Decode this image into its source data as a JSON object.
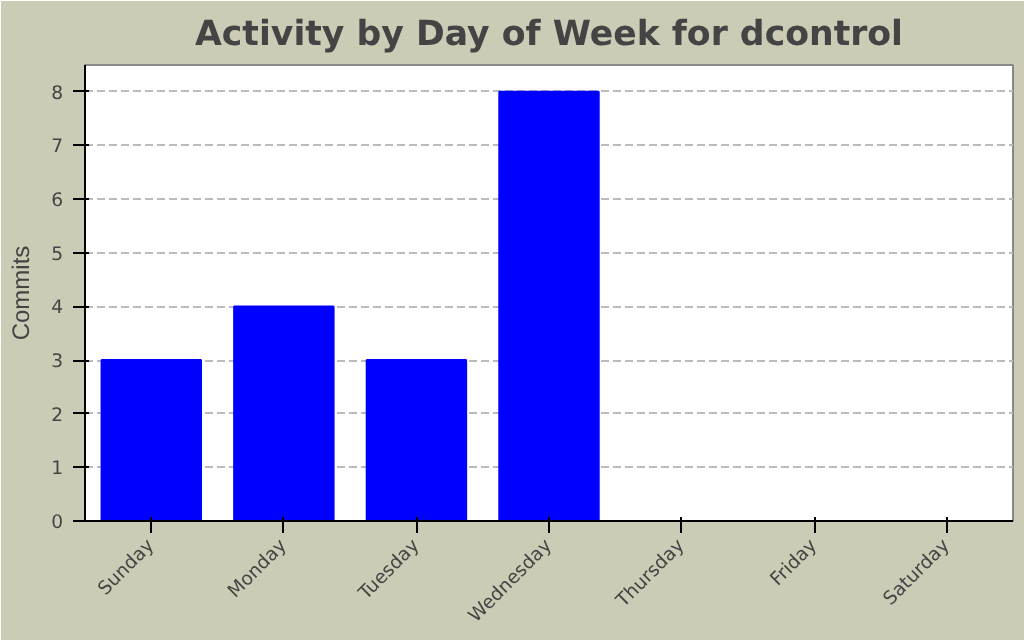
{
  "chart_data": {
    "type": "bar",
    "title": "Activity by Day of Week for dcontrol",
    "ylabel": "Commits",
    "categories": [
      "Sunday",
      "Monday",
      "Tuesday",
      "Wednesday",
      "Thursday",
      "Friday",
      "Saturday"
    ],
    "values": [
      3,
      4,
      3,
      8,
      0,
      0,
      0
    ],
    "color": "#0000ff",
    "ylim": [
      0,
      8.5
    ],
    "yticks": [
      0,
      1,
      2,
      3,
      4,
      5,
      6,
      7,
      8
    ],
    "grid": "y"
  }
}
